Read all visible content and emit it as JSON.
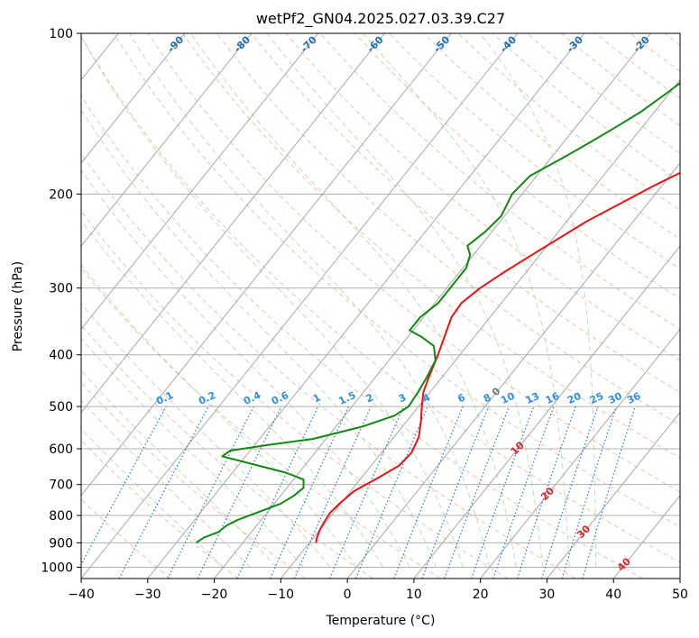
{
  "chart_data": {
    "type": "line",
    "title": "wetPf2_GN04.2025.027.03.39.C27",
    "xlabel": "Temperature (°C)",
    "ylabel": "Pressure (hPa)",
    "xlim": [
      -40,
      50
    ],
    "ylim": [
      1050,
      100
    ],
    "y_scale": "log",
    "grid": true,
    "x_ticks": [
      -40,
      -30,
      -20,
      -10,
      0,
      10,
      20,
      30,
      40,
      50
    ],
    "y_ticks": [
      100,
      200,
      300,
      400,
      500,
      600,
      700,
      800,
      900,
      1000
    ],
    "skew_isotherms": [
      -100,
      -90,
      -80,
      -70,
      -60,
      -50,
      -40,
      -30,
      -20,
      -10,
      0,
      10,
      20,
      30,
      40
    ],
    "mixing_ratio_labels": [
      "0.1",
      "0.2",
      "0.4",
      "0.6",
      "1",
      "1.5",
      "2",
      "3",
      "4",
      "6",
      "8",
      "10",
      "13",
      "16",
      "20",
      "25",
      "30",
      "36"
    ],
    "colors": {
      "temperature": "#ee1111",
      "dewpoint": "#118811",
      "isotherm_label": "#1f6fb5",
      "mixing_label": "#2f8fe8",
      "temp_label": "#d62728",
      "dry_adiabat": "#f4a582",
      "moist_adiabat": "#92c98e",
      "mixing_line": "#1f77d4"
    },
    "series": [
      {
        "name": "",
        "role": "temperature",
        "points": [
          [
            -9.0,
            900
          ],
          [
            -9.5,
            880
          ],
          [
            -10.0,
            850
          ],
          [
            -10.3,
            820
          ],
          [
            -10.5,
            790
          ],
          [
            -10.2,
            760
          ],
          [
            -9.5,
            720
          ],
          [
            -7.5,
            680
          ],
          [
            -5.8,
            645
          ],
          [
            -5.5,
            610
          ],
          [
            -6.3,
            570
          ],
          [
            -8.0,
            530
          ],
          [
            -9.5,
            500
          ],
          [
            -11.0,
            470
          ],
          [
            -12.0,
            440
          ],
          [
            -13.3,
            400
          ],
          [
            -14.5,
            370
          ],
          [
            -15.8,
            340
          ],
          [
            -16.0,
            320
          ],
          [
            -15.0,
            300
          ],
          [
            -13.3,
            280
          ],
          [
            -11.2,
            260
          ],
          [
            -9.5,
            245
          ],
          [
            -7.0,
            225
          ],
          [
            -3.5,
            205
          ],
          [
            -1.0,
            192
          ],
          [
            3.0,
            175
          ],
          [
            6.5,
            162
          ],
          [
            8.0,
            155
          ],
          [
            12.0,
            145
          ],
          [
            15.5,
            133
          ],
          [
            18.5,
            124
          ],
          [
            20.5,
            117
          ],
          [
            22.5,
            110
          ],
          [
            24.0,
            105
          ],
          [
            25.0,
            100
          ]
        ]
      },
      {
        "name": "",
        "role": "dewpoint",
        "points": [
          [
            -27.0,
            900
          ],
          [
            -26.5,
            880
          ],
          [
            -25.0,
            860
          ],
          [
            -24.5,
            835
          ],
          [
            -23.5,
            815
          ],
          [
            -21.5,
            790
          ],
          [
            -19.0,
            760
          ],
          [
            -18.0,
            735
          ],
          [
            -17.5,
            710
          ],
          [
            -18.5,
            685
          ],
          [
            -22.0,
            665
          ],
          [
            -27.0,
            645
          ],
          [
            -33.5,
            620
          ],
          [
            -33.0,
            605
          ],
          [
            -28.0,
            590
          ],
          [
            -22.0,
            575
          ],
          [
            -16.0,
            545
          ],
          [
            -12.5,
            520
          ],
          [
            -11.5,
            500
          ],
          [
            -11.8,
            470
          ],
          [
            -12.3,
            440
          ],
          [
            -13.0,
            410
          ],
          [
            -15.0,
            385
          ],
          [
            -18.0,
            370
          ],
          [
            -20.5,
            360
          ],
          [
            -20.5,
            340
          ],
          [
            -19.5,
            320
          ],
          [
            -19.5,
            300
          ],
          [
            -19.5,
            275
          ],
          [
            -20.5,
            260
          ],
          [
            -22.0,
            250
          ],
          [
            -21.0,
            235
          ],
          [
            -20.5,
            220
          ],
          [
            -21.5,
            200
          ],
          [
            -21.0,
            185
          ],
          [
            -18.0,
            170
          ],
          [
            -16.0,
            160
          ],
          [
            -14.0,
            150
          ],
          [
            -12.0,
            140
          ],
          [
            -10.5,
            130
          ],
          [
            -9.0,
            120
          ],
          [
            -7.0,
            110
          ],
          [
            -4.5,
            103
          ],
          [
            -3.5,
            100
          ]
        ]
      }
    ]
  }
}
